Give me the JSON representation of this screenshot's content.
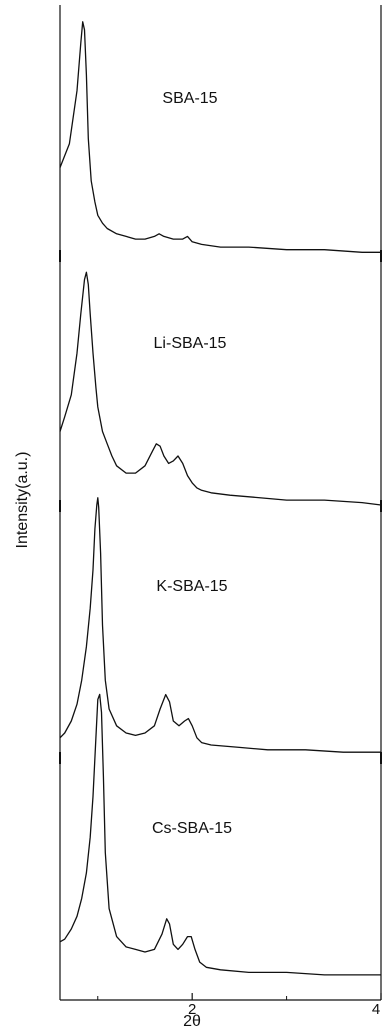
{
  "chart_data": {
    "type": "line",
    "title": "",
    "xlabel": "2θ",
    "ylabel": "Intensity(a.u.)",
    "xlim": [
      0.6,
      4.0
    ],
    "x_ticks": [
      2,
      4
    ],
    "x_tick_labels": [
      "2",
      "4"
    ],
    "y_ticks_shown": false,
    "grid": false,
    "legend": "none",
    "series_labels": [
      "SBA-15",
      "Li-SBA-15",
      "K-SBA-15",
      "Cs-SBA-15"
    ],
    "series": [
      {
        "x": [
          0.6,
          0.7,
          0.78,
          0.82,
          0.84,
          0.86,
          0.88,
          0.9,
          0.93,
          0.97,
          1.0,
          1.05,
          1.1,
          1.2,
          1.3,
          1.4,
          1.5,
          1.6,
          1.65,
          1.7,
          1.8,
          1.9,
          1.95,
          2.0,
          2.1,
          2.3,
          2.6,
          3.0,
          3.4,
          3.8,
          4.0
        ],
        "y": [
          0.33,
          0.42,
          0.62,
          0.8,
          0.88,
          0.85,
          0.68,
          0.44,
          0.28,
          0.2,
          0.15,
          0.12,
          0.1,
          0.08,
          0.07,
          0.06,
          0.06,
          0.07,
          0.08,
          0.07,
          0.06,
          0.06,
          0.07,
          0.05,
          0.04,
          0.03,
          0.03,
          0.02,
          0.02,
          0.01,
          0.01
        ]
      },
      {
        "x": [
          0.6,
          0.65,
          0.72,
          0.78,
          0.82,
          0.86,
          0.88,
          0.9,
          0.92,
          0.95,
          0.98,
          1.0,
          1.05,
          1.1,
          1.15,
          1.2,
          1.3,
          1.4,
          1.5,
          1.58,
          1.62,
          1.66,
          1.7,
          1.75,
          1.8,
          1.85,
          1.9,
          1.95,
          2.0,
          2.05,
          2.1,
          2.2,
          2.4,
          2.7,
          3.0,
          3.4,
          3.8,
          4.0
        ],
        "y": [
          0.3,
          0.36,
          0.45,
          0.62,
          0.78,
          0.92,
          0.95,
          0.9,
          0.78,
          0.62,
          0.48,
          0.4,
          0.3,
          0.25,
          0.2,
          0.16,
          0.13,
          0.13,
          0.16,
          0.22,
          0.25,
          0.24,
          0.2,
          0.17,
          0.18,
          0.2,
          0.17,
          0.12,
          0.09,
          0.07,
          0.06,
          0.05,
          0.04,
          0.03,
          0.02,
          0.02,
          0.01,
          0.0
        ]
      },
      {
        "x": [
          0.6,
          0.65,
          0.72,
          0.78,
          0.83,
          0.88,
          0.92,
          0.95,
          0.97,
          0.99,
          1.0,
          1.01,
          1.03,
          1.05,
          1.08,
          1.12,
          1.2,
          1.3,
          1.4,
          1.5,
          1.6,
          1.66,
          1.72,
          1.76,
          1.8,
          1.86,
          1.92,
          1.96,
          2.0,
          2.05,
          2.1,
          2.2,
          2.5,
          2.8,
          3.2,
          3.6,
          4.0
        ],
        "y": [
          0.08,
          0.1,
          0.15,
          0.22,
          0.32,
          0.46,
          0.62,
          0.78,
          0.95,
          1.05,
          1.08,
          1.04,
          0.85,
          0.55,
          0.32,
          0.2,
          0.13,
          0.1,
          0.09,
          0.1,
          0.13,
          0.2,
          0.26,
          0.23,
          0.15,
          0.13,
          0.15,
          0.16,
          0.13,
          0.08,
          0.06,
          0.05,
          0.04,
          0.03,
          0.03,
          0.02,
          0.02
        ]
      },
      {
        "x": [
          0.6,
          0.65,
          0.72,
          0.78,
          0.83,
          0.88,
          0.92,
          0.95,
          0.98,
          1.0,
          1.02,
          1.04,
          1.06,
          1.08,
          1.12,
          1.2,
          1.3,
          1.4,
          1.5,
          1.6,
          1.68,
          1.73,
          1.76,
          1.8,
          1.85,
          1.9,
          1.95,
          1.99,
          2.03,
          2.08,
          2.15,
          2.3,
          2.6,
          3.0,
          3.4,
          3.8,
          4.0
        ],
        "y": [
          0.15,
          0.16,
          0.2,
          0.25,
          0.32,
          0.42,
          0.56,
          0.72,
          0.95,
          1.1,
          1.12,
          1.05,
          0.8,
          0.5,
          0.28,
          0.17,
          0.13,
          0.12,
          0.11,
          0.12,
          0.18,
          0.24,
          0.22,
          0.14,
          0.12,
          0.14,
          0.17,
          0.17,
          0.12,
          0.07,
          0.05,
          0.04,
          0.03,
          0.03,
          0.02,
          0.02,
          0.02
        ]
      }
    ]
  }
}
